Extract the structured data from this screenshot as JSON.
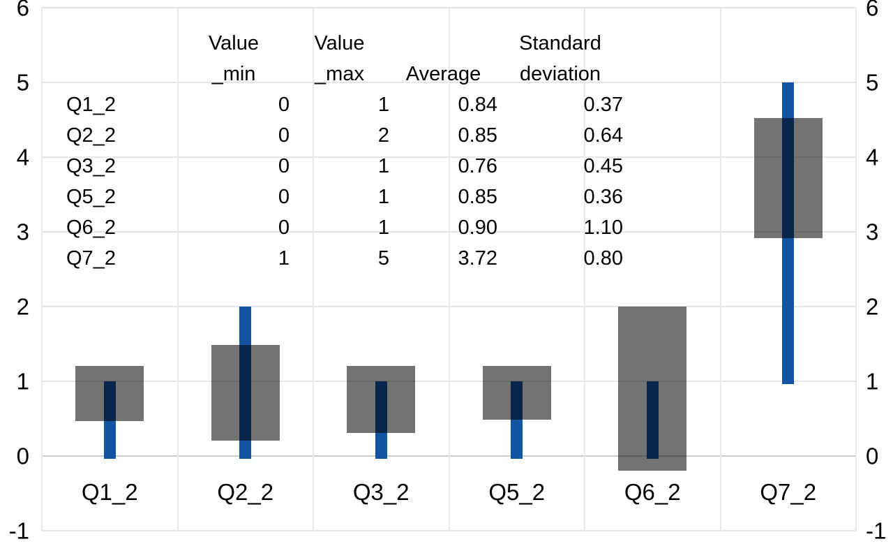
{
  "chart_data": {
    "type": "bar",
    "subtype": "min-max range bars with average±stddev boxes",
    "title": "",
    "xlabel": "",
    "ylabel": "",
    "categories": [
      "Q1_2",
      "Q2_2",
      "Q3_2",
      "Q5_2",
      "Q6_2",
      "Q7_2"
    ],
    "series": [
      {
        "name": "Value_min",
        "values": [
          0,
          0,
          0,
          0,
          0,
          1
        ]
      },
      {
        "name": "Value_max",
        "values": [
          1,
          2,
          1,
          1,
          1,
          5
        ]
      },
      {
        "name": "Average",
        "values": [
          0.84,
          0.85,
          0.76,
          0.85,
          0.9,
          3.72
        ]
      },
      {
        "name": "Standard deviation",
        "values": [
          0.37,
          0.64,
          0.45,
          0.36,
          1.1,
          0.8
        ]
      }
    ],
    "ylim": [
      -1,
      6
    ],
    "yticks": [
      6,
      5,
      4,
      3,
      2,
      1,
      0,
      -1
    ],
    "grid": true,
    "legend": "none",
    "colors": {
      "range_bar_blue": "#1256A3",
      "stddev_box_overlay": "rgba(0,0,0,0.55)",
      "stddev_box_over_white": "#727272",
      "overlap_navy": "#0B274A",
      "gridline": "#e6e6e6",
      "zero_gridline": "#cccccc",
      "text": "#000000",
      "background": "#ffffff"
    }
  },
  "table": {
    "col_headers_line1": [
      "",
      "Value",
      "Value",
      "",
      "Standard"
    ],
    "col_headers_line2": [
      "",
      "_min",
      "_max",
      "Average",
      "deviation"
    ],
    "rows": [
      {
        "label": "Q1_2",
        "min": "0",
        "max": "1",
        "avg": "0.84",
        "std": "0.37"
      },
      {
        "label": "Q2_2",
        "min": "0",
        "max": "2",
        "avg": "0.85",
        "std": "0.64"
      },
      {
        "label": "Q3_2",
        "min": "0",
        "max": "1",
        "avg": "0.76",
        "std": "0.45"
      },
      {
        "label": "Q5_2",
        "min": "0",
        "max": "1",
        "avg": "0.85",
        "std": "0.36"
      },
      {
        "label": "Q6_2",
        "min": "0",
        "max": "1",
        "avg": "0.90",
        "std": "1.10"
      },
      {
        "label": "Q7_2",
        "min": "1",
        "max": "5",
        "avg": "3.72",
        "std": "0.80"
      }
    ]
  }
}
